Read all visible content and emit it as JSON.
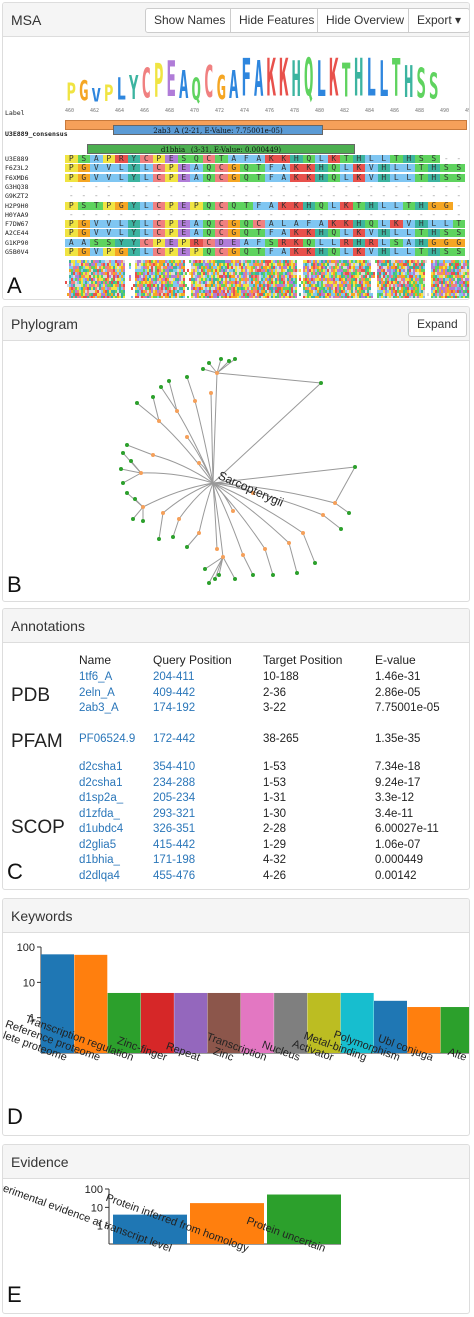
{
  "msa": {
    "title": "MSA",
    "buttons": {
      "show_names": "Show Names",
      "hide_features": "Hide Features",
      "hide_overview": "Hide Overview",
      "export": "Export"
    },
    "figure_letter": "A",
    "label_row": "Label",
    "consensus_label": "U3E889_consensus",
    "ticks": [
      "460",
      "462",
      "464",
      "466",
      "468",
      "470",
      "472",
      "474",
      "476",
      "478",
      "480",
      "482",
      "484",
      "486",
      "488",
      "490",
      "492",
      "494",
      "496",
      "498",
      "500",
      "502"
    ],
    "logo": "PGVPLYCPEAQCGAFAKKHQLKTHLLTHSS",
    "features": [
      {
        "label": "2ab3_A (2-21, E-Value: 7.75001e-05)",
        "color": "#5b9bd5"
      },
      {
        "label": "d1bhia_ (3-31, E-Value: 0.000449)",
        "color": "#4caf50"
      }
    ],
    "sequences": [
      {
        "name": "U3E889",
        "seq": "PSAPRYCPESQCTAFAKKHQLKTHLLTHSS"
      },
      {
        "name": "F6Z3L2",
        "seq": "PGVVLYLCPEAQCGQTFAKKHQLKVHLLTHSS"
      },
      {
        "name": "F6XMD6",
        "seq": "PGVVLYLCPEAQCGQTFAKKHQLKVHLLTHSS"
      },
      {
        "name": "G3HQ38",
        "seq": ""
      },
      {
        "name": "G9KZT2",
        "seq": ""
      },
      {
        "name": "H2P9H0",
        "seq": "PSTPGYLCPEPQCQTFAKKHQLKTHLLTHGG"
      },
      {
        "name": "H0YAA9",
        "seq": ""
      },
      {
        "name": "F7DW67",
        "seq": "PGVVLYLCPEAQCGQCALAFAKKHQLKVHLLTHSS"
      },
      {
        "name": "A2CE44",
        "seq": "PGVVLYLCPEAQCGQTFAKKHQLKVHLLTHSS"
      },
      {
        "name": "G1KP90",
        "seq": "AASSYYCPEPRCDEAFSRKQLLRHRLSAHGGGGGEEEAASS"
      },
      {
        "name": "G5B0V4",
        "seq": "PGVPGYLCPEPQCGQTFAKKHQLKVHLLTHSS"
      }
    ]
  },
  "phylogram": {
    "title": "Phylogram",
    "expand_label": "Expand",
    "figure_letter": "B",
    "node_label": "Sarcopterygii"
  },
  "annotations": {
    "title": "Annotations",
    "figure_letter": "C",
    "columns": [
      "Name",
      "Query Position",
      "Target Position",
      "E-value"
    ],
    "groups": [
      {
        "db": "PDB",
        "rows": [
          {
            "name": "1tf6_A",
            "query": "204-411",
            "target": "10-188",
            "evalue": "1.46e-31"
          },
          {
            "name": "2eln_A",
            "query": "409-442",
            "target": "2-36",
            "evalue": "2.86e-05"
          },
          {
            "name": "2ab3_A",
            "query": "174-192",
            "target": "3-22",
            "evalue": "7.75001e-05"
          }
        ]
      },
      {
        "db": "PFAM",
        "rows": [
          {
            "name": "PF06524.9",
            "query": "172-442",
            "target": "38-265",
            "evalue": "1.35e-35"
          }
        ]
      },
      {
        "db": "SCOP",
        "rows": [
          {
            "name": "d2csha1",
            "query": "354-410",
            "target": "1-53",
            "evalue": "7.34e-18"
          },
          {
            "name": "d2csha1",
            "query": "234-288",
            "target": "1-53",
            "evalue": "9.24e-17"
          },
          {
            "name": "d1sp2a_",
            "query": "205-234",
            "target": "1-31",
            "evalue": "3.3e-12"
          },
          {
            "name": "d1zfda_",
            "query": "293-321",
            "target": "1-30",
            "evalue": "3.4e-11"
          },
          {
            "name": "d1ubdc4",
            "query": "326-351",
            "target": "2-28",
            "evalue": "6.00027e-11"
          },
          {
            "name": "d2glia5",
            "query": "415-442",
            "target": "1-29",
            "evalue": "1.06e-07"
          },
          {
            "name": "d1bhia_",
            "query": "171-198",
            "target": "4-32",
            "evalue": "0.000449"
          },
          {
            "name": "d2dlqa4",
            "query": "455-476",
            "target": "4-26",
            "evalue": "0.00142"
          }
        ]
      }
    ]
  },
  "keywords": {
    "title": "Keywords",
    "figure_letter": "D"
  },
  "evidence": {
    "title": "Evidence",
    "figure_letter": "E"
  },
  "chart_data": [
    {
      "type": "bar",
      "yscale": "log",
      "ylim": [
        0.1,
        100
      ],
      "yticks": [
        "100",
        "10",
        "1"
      ],
      "categories": [
        "Complete proteome",
        "Reference proteome",
        "Transcription regulation",
        "Zinc-finger",
        "Repeat",
        "Zinc",
        "Transcription",
        "Nucleus",
        "Activator",
        "Metal-binding",
        "Polymorphism",
        "Ubl conjugation",
        "Alternative splicing"
      ],
      "tick_labels": [
        "Complete proteome",
        "Reference proteome",
        "Transcription regulation",
        "Zinc-finger",
        "Repeat",
        "Zinc",
        "Transcription",
        "Nucleus",
        "Activator",
        "Metal-binding",
        "Polymorphism",
        "Ubl conjuga",
        "Alte"
      ],
      "values": [
        62,
        60,
        5,
        5,
        5,
        5,
        5,
        5,
        5,
        5,
        3,
        2,
        2
      ],
      "colors": [
        "#1f77b4",
        "#ff7f0e",
        "#2ca02c",
        "#d62728",
        "#9467bd",
        "#8c564b",
        "#e377c2",
        "#7f7f7f",
        "#bcbd22",
        "#17becf",
        "#1f77b4",
        "#ff7f0e",
        "#2ca02c"
      ]
    },
    {
      "type": "bar",
      "yscale": "log",
      "ylim": [
        0.1,
        100
      ],
      "yticks": [
        "100",
        "10",
        "1"
      ],
      "categories": [
        "Experimental evidence at transcript level",
        "Protein inferred from homology",
        "Protein uncertain"
      ],
      "values": [
        4,
        17,
        50
      ],
      "colors": [
        "#1f77b4",
        "#ff7f0e",
        "#2ca02c"
      ]
    }
  ]
}
